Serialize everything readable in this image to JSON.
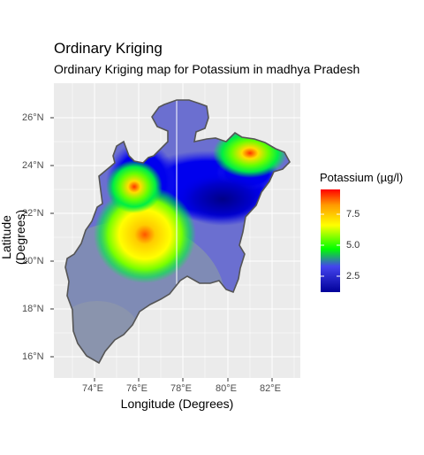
{
  "title": "Ordinary Kriging",
  "subtitle": "Ordinary Kriging map for Potassium in madhya Pradesh",
  "x_axis_label": "Longitude (Degrees)",
  "y_axis_label": "Latitude (Degrees)",
  "x_ticks": [
    "74°E",
    "76°E",
    "78°E",
    "80°E",
    "82°E"
  ],
  "y_ticks": [
    "26°N",
    "24°N",
    "22°N",
    "20°N",
    "18°N",
    "16°N"
  ],
  "legend": {
    "title": "Potassium (µg/l)",
    "ticks": [
      "7.5",
      "5.0",
      "2.5"
    ],
    "colors": [
      "#ff0000",
      "#ff9900",
      "#ffff00",
      "#00ff00",
      "#4444ee",
      "#000099"
    ]
  },
  "chart_data": {
    "type": "heatmap",
    "title": "Ordinary Kriging",
    "subtitle": "Ordinary Kriging map for Potassium in madhya Pradesh",
    "xlabel": "Longitude (Degrees)",
    "ylabel": "Latitude (Degrees)",
    "xlim": [
      72.2,
      83.3
    ],
    "ylim": [
      15.0,
      27.3
    ],
    "value_range": [
      1.6,
      9.5
    ],
    "hotspots": [
      {
        "lon": 76.3,
        "lat": 21.2,
        "value": 8.3
      },
      {
        "lon": 75.8,
        "lat": 23.1,
        "value": 9.0
      },
      {
        "lon": 81.0,
        "lat": 24.5,
        "value": 9.5
      }
    ],
    "background": "panel grey with white grid",
    "legend_placement": "right"
  }
}
